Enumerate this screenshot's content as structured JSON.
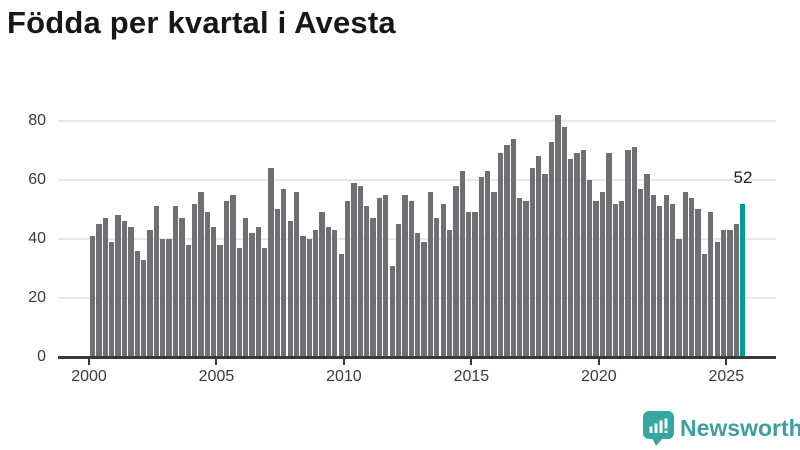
{
  "colors": {
    "bar": "#6e6e73",
    "highlight": "#009e96",
    "grid": "#e8e8e8",
    "axis": "#3a3a3a",
    "logo_icon": "#35a79e",
    "logo_text": "#3d9fa0"
  },
  "footer": {
    "brand": "Newsworthy"
  },
  "chart_data": {
    "type": "bar",
    "title": "Födda per kvartal i Avesta",
    "xlabel": "",
    "ylabel": "",
    "ylim": [
      0,
      80
    ],
    "yticks": [
      0,
      20,
      40,
      60,
      80
    ],
    "xticks": [
      2000,
      2005,
      2010,
      2015,
      2020,
      2025
    ],
    "grid": true,
    "legend": false,
    "highlight_index": 102,
    "highlight_label": "52",
    "x": [
      "2000 Q1",
      "2000 Q2",
      "2000 Q3",
      "2000 Q4",
      "2001 Q1",
      "2001 Q2",
      "2001 Q3",
      "2001 Q4",
      "2002 Q1",
      "2002 Q2",
      "2002 Q3",
      "2002 Q4",
      "2003 Q1",
      "2003 Q2",
      "2003 Q3",
      "2003 Q4",
      "2004 Q1",
      "2004 Q2",
      "2004 Q3",
      "2004 Q4",
      "2005 Q1",
      "2005 Q2",
      "2005 Q3",
      "2005 Q4",
      "2006 Q1",
      "2006 Q2",
      "2006 Q3",
      "2006 Q4",
      "2007 Q1",
      "2007 Q2",
      "2007 Q3",
      "2007 Q4",
      "2008 Q1",
      "2008 Q2",
      "2008 Q3",
      "2008 Q4",
      "2009 Q1",
      "2009 Q2",
      "2009 Q3",
      "2009 Q4",
      "2010 Q1",
      "2010 Q2",
      "2010 Q3",
      "2010 Q4",
      "2011 Q1",
      "2011 Q2",
      "2011 Q3",
      "2011 Q4",
      "2012 Q1",
      "2012 Q2",
      "2012 Q3",
      "2012 Q4",
      "2013 Q1",
      "2013 Q2",
      "2013 Q3",
      "2013 Q4",
      "2014 Q1",
      "2014 Q2",
      "2014 Q3",
      "2014 Q4",
      "2015 Q1",
      "2015 Q2",
      "2015 Q3",
      "2015 Q4",
      "2016 Q1",
      "2016 Q2",
      "2016 Q3",
      "2016 Q4",
      "2017 Q1",
      "2017 Q2",
      "2017 Q3",
      "2017 Q4",
      "2018 Q1",
      "2018 Q2",
      "2018 Q3",
      "2018 Q4",
      "2019 Q1",
      "2019 Q2",
      "2019 Q3",
      "2019 Q4",
      "2020 Q1",
      "2020 Q2",
      "2020 Q3",
      "2020 Q4",
      "2021 Q1",
      "2021 Q2",
      "2021 Q3",
      "2021 Q4",
      "2022 Q1",
      "2022 Q2",
      "2022 Q3",
      "2022 Q4",
      "2023 Q1",
      "2023 Q2",
      "2023 Q3",
      "2023 Q4",
      "2024 Q1",
      "2024 Q2",
      "2024 Q3",
      "2024 Q4",
      "2025 Q1",
      "2025 Q2",
      "2025 Q3"
    ],
    "values": [
      41,
      45,
      47,
      39,
      48,
      46,
      44,
      36,
      33,
      43,
      51,
      40,
      40,
      51,
      47,
      38,
      52,
      56,
      49,
      44,
      38,
      53,
      55,
      37,
      47,
      42,
      44,
      37,
      64,
      50,
      57,
      46,
      56,
      41,
      40,
      43,
      49,
      44,
      43,
      35,
      53,
      59,
      58,
      51,
      47,
      54,
      55,
      31,
      45,
      55,
      53,
      42,
      39,
      56,
      47,
      52,
      43,
      58,
      63,
      49,
      49,
      61,
      63,
      56,
      69,
      72,
      74,
      54,
      53,
      64,
      68,
      62,
      73,
      82,
      78,
      67,
      69,
      70,
      60,
      53,
      56,
      69,
      52,
      53,
      70,
      71,
      57,
      62,
      55,
      51,
      55,
      52,
      40,
      56,
      54,
      50,
      35,
      49,
      39,
      43,
      43,
      45,
      52
    ]
  }
}
